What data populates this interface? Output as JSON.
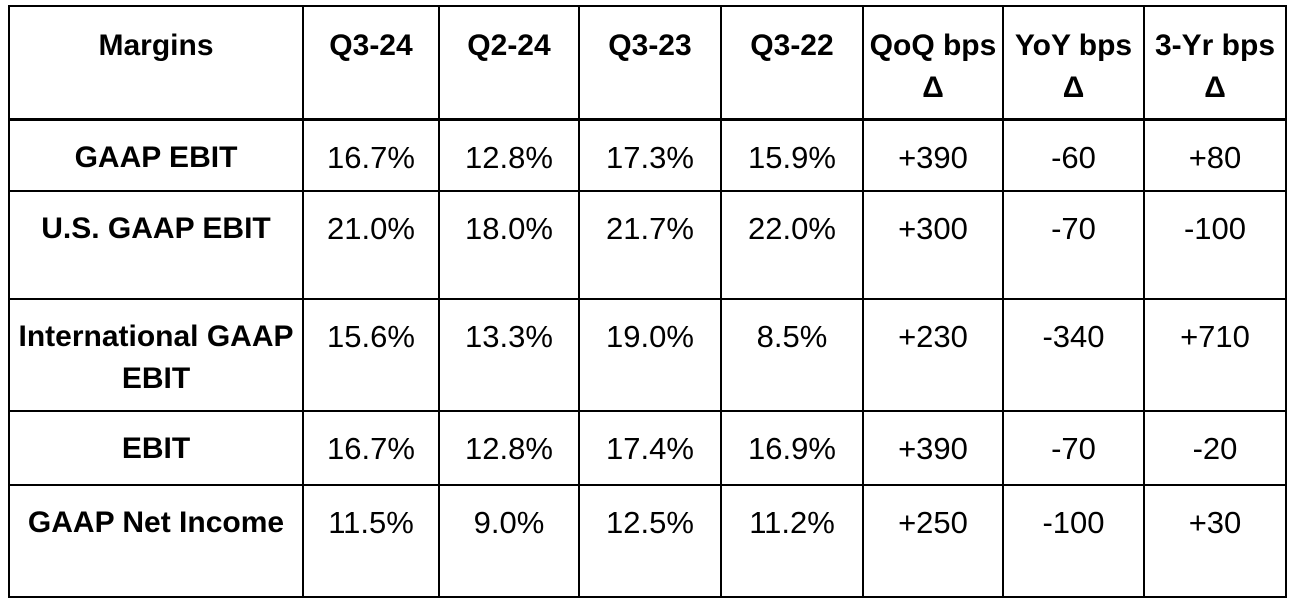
{
  "table": {
    "header": [
      "Margins",
      "Q3-24",
      "Q2-24",
      "Q3-23",
      "Q3-22",
      "QoQ bps Δ",
      "YoY bps Δ",
      "3-Yr bps Δ"
    ],
    "rows": [
      [
        "GAAP EBIT",
        "16.7%",
        "12.8%",
        "17.3%",
        "15.9%",
        "+390",
        "-60",
        "+80"
      ],
      [
        "U.S. GAAP EBIT",
        "21.0%",
        "18.0%",
        "21.7%",
        "22.0%",
        "+300",
        "-70",
        "-100"
      ],
      [
        "International GAAP EBIT",
        "15.6%",
        "13.3%",
        "19.0%",
        "8.5%",
        "+230",
        "-340",
        "+710"
      ],
      [
        "EBIT",
        "16.7%",
        "12.8%",
        "17.4%",
        "16.9%",
        "+390",
        "-70",
        "-20"
      ],
      [
        "GAAP Net Income",
        "11.5%",
        "9.0%",
        "12.5%",
        "11.2%",
        "+250",
        "-100",
        "+30"
      ]
    ]
  }
}
